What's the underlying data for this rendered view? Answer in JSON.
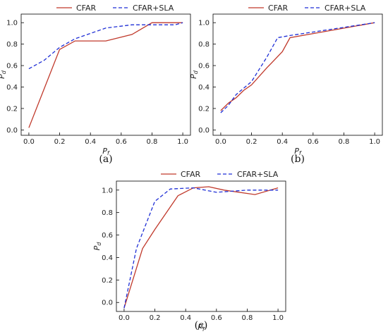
{
  "legend": {
    "cfar": "CFAR",
    "cfar_sla": "CFAR+SLA"
  },
  "colors": {
    "cfar": "#c0392b",
    "cfar_sla": "#1f2fd6"
  },
  "chart_data": [
    {
      "type": "line",
      "panel_label": "(a)",
      "xlabel": "Pf",
      "ylabel": "Pd",
      "xlim": [
        -0.05,
        1.05
      ],
      "ylim": [
        -0.05,
        1.08
      ],
      "xticks": [
        "0.0",
        "0.2",
        "0.4",
        "0.6",
        "0.8",
        "1.0"
      ],
      "yticks": [
        "0.0",
        "0.2",
        "0.4",
        "0.6",
        "0.8",
        "1.0"
      ],
      "series": [
        {
          "name": "CFAR",
          "style": "solid",
          "x": [
            0.0,
            0.2,
            0.3,
            0.5,
            0.67,
            0.8,
            0.95,
            1.0
          ],
          "y": [
            0.02,
            0.75,
            0.83,
            0.83,
            0.89,
            1.0,
            1.0,
            1.0
          ]
        },
        {
          "name": "CFAR+SLA",
          "style": "dashed",
          "x": [
            0.0,
            0.1,
            0.2,
            0.3,
            0.4,
            0.5,
            0.67,
            0.8,
            0.95,
            1.0
          ],
          "y": [
            0.57,
            0.65,
            0.77,
            0.85,
            0.9,
            0.95,
            0.98,
            0.98,
            0.98,
            1.0
          ]
        }
      ]
    },
    {
      "type": "line",
      "panel_label": "(b)",
      "xlabel": "Pf",
      "ylabel": "Pd",
      "xlim": [
        -0.05,
        1.05
      ],
      "ylim": [
        -0.05,
        1.08
      ],
      "xticks": [
        "0.0",
        "0.2",
        "0.4",
        "0.6",
        "0.8",
        "1.0"
      ],
      "yticks": [
        "0.0",
        "0.2",
        "0.4",
        "0.6",
        "0.8",
        "1.0"
      ],
      "series": [
        {
          "name": "CFAR",
          "style": "solid",
          "x": [
            0.0,
            0.05,
            0.1,
            0.15,
            0.2,
            0.3,
            0.4,
            0.45,
            1.0
          ],
          "y": [
            0.18,
            0.25,
            0.3,
            0.37,
            0.42,
            0.58,
            0.73,
            0.86,
            1.0
          ]
        },
        {
          "name": "CFAR+SLA",
          "style": "dashed",
          "x": [
            0.0,
            0.05,
            0.1,
            0.2,
            0.3,
            0.37,
            0.45,
            1.0
          ],
          "y": [
            0.16,
            0.23,
            0.33,
            0.45,
            0.68,
            0.86,
            0.88,
            1.0
          ]
        }
      ]
    },
    {
      "type": "line",
      "panel_label": "(c)",
      "xlabel": "Pf",
      "ylabel": "Pd",
      "xlim": [
        -0.05,
        1.05
      ],
      "ylim": [
        -0.08,
        1.08
      ],
      "xticks": [
        "0.0",
        "0.2",
        "0.4",
        "0.6",
        "0.8",
        "1.0"
      ],
      "yticks": [
        "0.0",
        "0.2",
        "0.4",
        "0.6",
        "0.8",
        "1.0"
      ],
      "series": [
        {
          "name": "CFAR",
          "style": "solid",
          "x": [
            0.0,
            0.12,
            0.2,
            0.35,
            0.45,
            0.55,
            0.65,
            0.85,
            1.0
          ],
          "y": [
            -0.05,
            0.48,
            0.65,
            0.95,
            1.02,
            1.03,
            1.0,
            0.96,
            1.02
          ]
        },
        {
          "name": "CFAR+SLA",
          "style": "dashed",
          "x": [
            0.0,
            0.08,
            0.2,
            0.3,
            0.45,
            0.6,
            0.8,
            1.0
          ],
          "y": [
            -0.05,
            0.48,
            0.9,
            1.01,
            1.02,
            0.98,
            1.0,
            1.0
          ]
        }
      ]
    }
  ]
}
